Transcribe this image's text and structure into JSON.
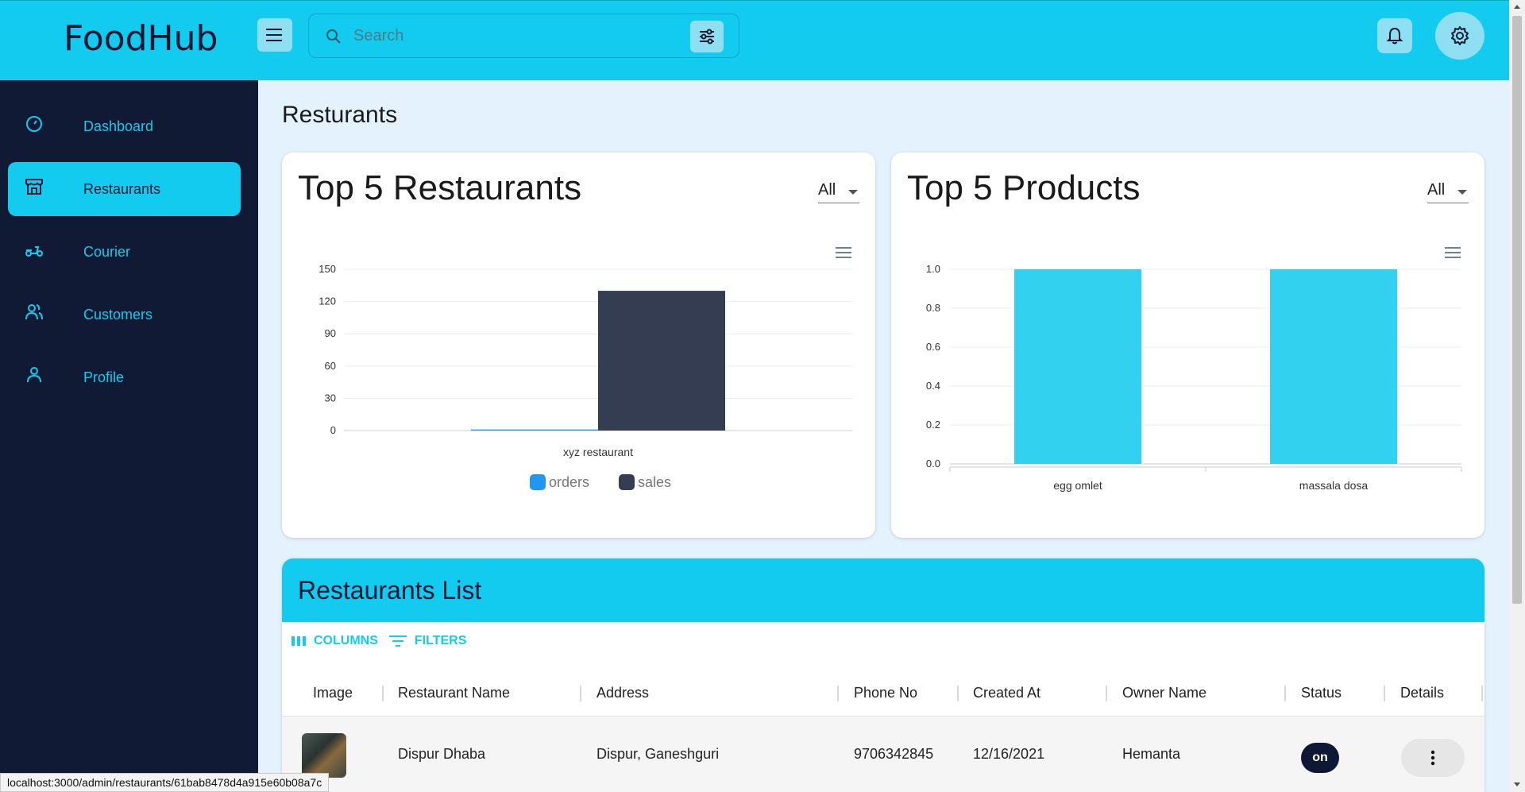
{
  "app": {
    "title": "FoodHub"
  },
  "search": {
    "placeholder": "Search"
  },
  "sidebar": {
    "items": [
      {
        "label": "Dashboard",
        "icon": "dashboard-icon"
      },
      {
        "label": "Restaurants",
        "icon": "storefront-icon",
        "active": true
      },
      {
        "label": "Courier",
        "icon": "scooter-icon"
      },
      {
        "label": "Customers",
        "icon": "people-icon"
      },
      {
        "label": "Profile",
        "icon": "person-icon"
      }
    ]
  },
  "page": {
    "title": "Resturants"
  },
  "top_restaurants": {
    "title": "Top 5 Restaurants",
    "filter": "All"
  },
  "top_products": {
    "title": "Top 5 Products",
    "filter": "All"
  },
  "chart_data": [
    {
      "type": "bar",
      "title": "Top 5 Restaurants",
      "categories": [
        "xyz restaurant"
      ],
      "series": [
        {
          "name": "orders",
          "values": [
            1
          ],
          "color": "#2196f3"
        },
        {
          "name": "sales",
          "values": [
            130
          ],
          "color": "#353d52"
        }
      ],
      "ylim": [
        0,
        150
      ],
      "yticks": [
        "0",
        "30",
        "60",
        "90",
        "120",
        "150"
      ],
      "legend": "bottom"
    },
    {
      "type": "bar",
      "title": "Top 5 Products",
      "categories": [
        "egg omlet",
        "massala dosa"
      ],
      "values": [
        1.0,
        1.0
      ],
      "ylim": [
        0,
        1.0
      ],
      "yticks": [
        "0.0",
        "0.2",
        "0.4",
        "0.6",
        "0.8",
        "1.0"
      ],
      "color": "#33d1f0"
    }
  ],
  "list": {
    "title": "Restaurants List",
    "toolbar": {
      "columns": "COLUMNS",
      "filters": "FILTERS"
    },
    "columns": [
      "Image",
      "Restaurant Name",
      "Address",
      "Phone No",
      "Created At",
      "Owner Name",
      "Status",
      "Details"
    ],
    "rows": [
      {
        "name": "Dispur Dhaba",
        "address": "Dispur, Ganeshguri",
        "phone": "9706342845",
        "created": "12/16/2021",
        "owner": "Hemanta",
        "status": "on"
      }
    ]
  },
  "statusbar": {
    "url": "localhost:3000/admin/restaurants/61bab8478d4a915e60b08a7c"
  },
  "colors": {
    "accent": "#12cbef",
    "sidebar": "#101a35",
    "background": "#e3f2fd"
  }
}
